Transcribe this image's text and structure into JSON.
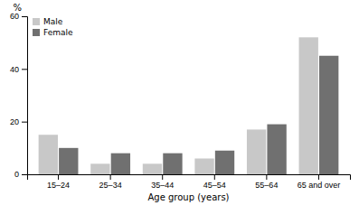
{
  "chart_data": {
    "type": "bar",
    "categories": [
      "15–24",
      "25–34",
      "35–44",
      "45–54",
      "55–64",
      "65 and over"
    ],
    "series": [
      {
        "name": "Male",
        "color": "#c8c8c8",
        "values": [
          15,
          4,
          4,
          6,
          17,
          52
        ]
      },
      {
        "name": "Female",
        "color": "#707070",
        "values": [
          10,
          8,
          8,
          9,
          19,
          45
        ]
      }
    ],
    "xlabel": "Age group (years)",
    "ylabel": "%",
    "ylim": [
      0,
      60
    ],
    "yticks": [
      0,
      20,
      40,
      60
    ],
    "grid": false,
    "legend": "top-left"
  }
}
